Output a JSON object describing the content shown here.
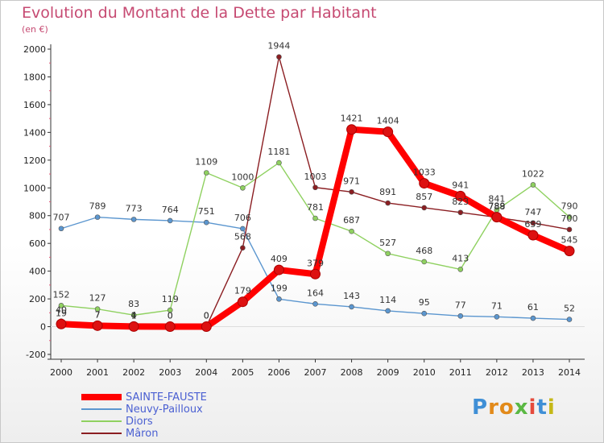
{
  "header": {
    "title": "Evolution du Montant de la Dette par Habitant",
    "subtitle": "(en €)"
  },
  "logo": {
    "letters": [
      "P",
      "r",
      "o",
      "x",
      "i",
      "t",
      "i"
    ],
    "colors": [
      "#3f8fd6",
      "#e28a1a",
      "#e28a1a",
      "#5ab843",
      "#e54b3c",
      "#3f8fd6",
      "#c5b817"
    ]
  },
  "chart_data": {
    "type": "line",
    "title": "Evolution du Montant de la Dette par Habitant",
    "ylabel": "(en €)",
    "x": [
      "2000",
      "2001",
      "2002",
      "2003",
      "2004",
      "2005",
      "2006",
      "2007",
      "2008",
      "2009",
      "2010",
      "2011",
      "2012",
      "2013",
      "2014"
    ],
    "ylim": [
      -200,
      2000
    ],
    "yticks": [
      -200,
      0,
      200,
      400,
      600,
      800,
      1000,
      1200,
      1400,
      1600,
      1800,
      2000
    ],
    "legend": "bottom-left",
    "series": [
      {
        "name": "SAINTE-FAUSTE",
        "color": "#ff0000",
        "values": [
          19,
          7,
          1,
          0,
          0,
          179,
          409,
          379,
          1421,
          1404,
          1033,
          941,
          789,
          659,
          545
        ]
      },
      {
        "name": "Neuvy-Pailloux",
        "color": "#5b96cf",
        "values": [
          707,
          789,
          773,
          764,
          751,
          706,
          199,
          164,
          143,
          114,
          95,
          77,
          71,
          61,
          52
        ]
      },
      {
        "name": "Diors",
        "color": "#8fd160",
        "values": [
          152,
          127,
          83,
          119,
          1109,
          1000,
          1181,
          781,
          687,
          527,
          468,
          413,
          841,
          1022,
          790
        ]
      },
      {
        "name": "Mâron",
        "color": "#8b1e22",
        "values": [
          40,
          7,
          4,
          0,
          0,
          568,
          1944,
          1003,
          971,
          891,
          857,
          823,
          788,
          747,
          700
        ]
      }
    ]
  }
}
